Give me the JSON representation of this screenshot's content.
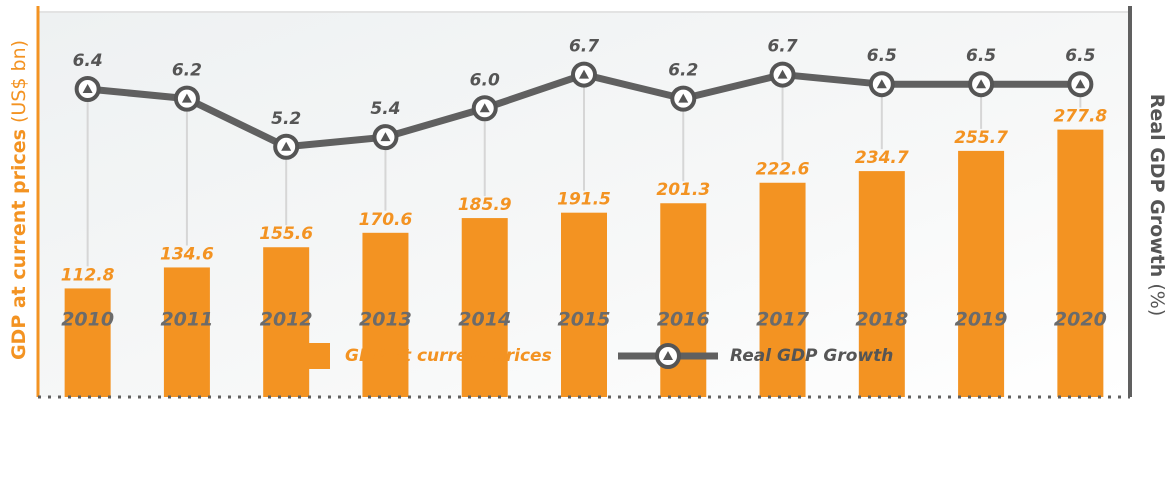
{
  "chart_data": {
    "type": "combo",
    "categories": [
      "2010",
      "2011",
      "2012",
      "2013",
      "2014",
      "2015",
      "2016",
      "2017",
      "2018",
      "2019",
      "2020"
    ],
    "series": [
      {
        "name": "GDP at current prices",
        "type": "bar",
        "color": "#f39322",
        "values": [
          112.8,
          134.6,
          155.6,
          170.6,
          185.9,
          191.5,
          201.3,
          222.6,
          234.7,
          255.7,
          277.8
        ]
      },
      {
        "name": "Real GDP Growth",
        "type": "line",
        "axis": "y2",
        "color": "#606060",
        "values": [
          6.4,
          6.2,
          5.2,
          5.4,
          6.0,
          6.7,
          6.2,
          6.7,
          6.5,
          6.5,
          6.5
        ],
        "value_labels": [
          "6.4",
          "6.2",
          "5.2",
          "5.4",
          "6.0",
          "6.7",
          "6.2",
          "6.7",
          "6.5",
          "6.5",
          "6.5"
        ]
      }
    ],
    "y_label": "GDP at current prices",
    "y_label_unit": "(US$ bn)",
    "y2_label": "Real GDP Growth",
    "y2_label_unit": "(%)",
    "ylim": [
      0,
      400
    ],
    "y2lim": [
      0,
      8
    ],
    "legend": "bottom"
  }
}
